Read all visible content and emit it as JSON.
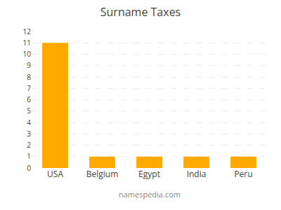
{
  "chart_data": {
    "type": "bar",
    "title": "Surname Taxes",
    "categories": [
      "USA",
      "Belgium",
      "Egypt",
      "India",
      "Peru"
    ],
    "values": [
      11,
      1,
      1,
      1,
      1
    ],
    "color": "#FFA800",
    "ylim": [
      0,
      12
    ],
    "yticks": [
      0,
      1,
      2,
      3,
      4,
      5,
      6,
      7,
      8,
      9,
      10,
      11,
      12
    ],
    "grid": true,
    "annotations": [
      "namespedia.com"
    ]
  }
}
